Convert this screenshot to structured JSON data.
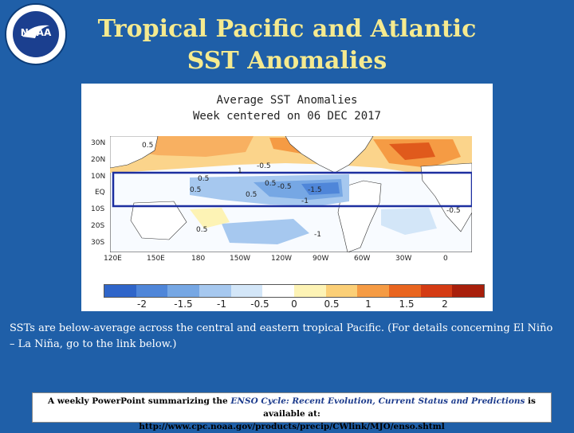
{
  "logo": {
    "text": "NOAA"
  },
  "title": {
    "line1": "Tropical Pacific and Atlantic",
    "line2": "SST Anomalies"
  },
  "map": {
    "heading1": "Average SST Anomalies",
    "heading2": "Week centered on 06 DEC 2017",
    "lat_labels": [
      "30N",
      "20N",
      "10N",
      "EQ",
      "10S",
      "20S",
      "30S"
    ],
    "lon_labels": [
      "120E",
      "150E",
      "180",
      "150W",
      "120W",
      "90W",
      "60W",
      "30W",
      "0"
    ],
    "contour_labels": [
      "0.5",
      "0.5",
      "1",
      "0.5",
      "0.5",
      "0.5",
      "-0.5",
      "-1.5",
      "-1",
      "-0.5",
      "0.5",
      "-0.5",
      "-1"
    ],
    "colorbar": {
      "colors": [
        "#2f65c9",
        "#4f86d9",
        "#76a7e4",
        "#a6c8ef",
        "#d3e6f8",
        "#ffffff",
        "#fdf3b5",
        "#fbcf77",
        "#f59b44",
        "#e9651f",
        "#d43b13",
        "#a81f0b"
      ],
      "labels": [
        "-2",
        "-1.5",
        "-1",
        "-0.5",
        "0",
        "0.5",
        "1",
        "1.5",
        "2"
      ]
    }
  },
  "description": "SSTs are below-average across the central and eastern tropical Pacific. (For details concerning El Niño – La Niña, go to the link below.)",
  "footer": {
    "prefix": "A weekly PowerPoint summarizing the ",
    "link_text": "ENSO Cycle: Recent Evolution, Current Status and Predictions",
    "suffix": " is available at:",
    "url": "http://www.cpc.noaa.gov/products/precip/CWlink/MJO/enso.shtml"
  }
}
